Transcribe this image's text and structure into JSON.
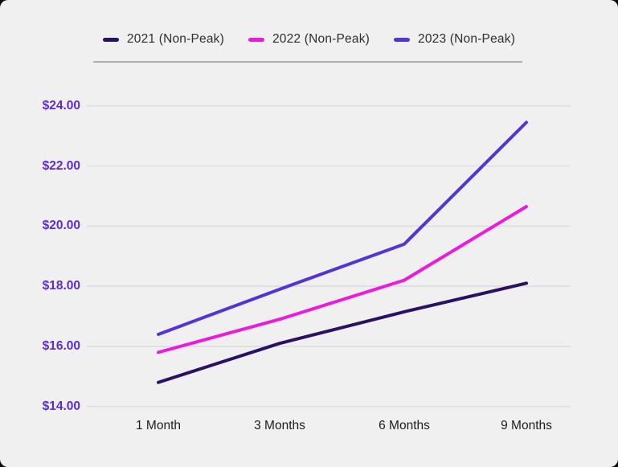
{
  "colors": {
    "background": "#f0f0f1",
    "gridline": "#dedee2",
    "divider": "#ababad",
    "y_tick_text": "#5b2bd5",
    "x_tick_text": "#1d1d1f",
    "legend_text": "#2e2e30",
    "series_2021": "#2b1166",
    "series_2022": "#ea1bdc",
    "series_2023": "#5534d4"
  },
  "legend": {
    "items": [
      {
        "label": "2021 (Non-Peak)",
        "color": "#2b1166"
      },
      {
        "label": "2022 (Non-Peak)",
        "color": "#ea1bdc"
      },
      {
        "label": "2023 (Non-Peak)",
        "color": "#5534d4"
      }
    ]
  },
  "chart_data": {
    "type": "line",
    "categories": [
      "1 Month",
      "3 Months",
      "6 Months",
      "9 Months"
    ],
    "series": [
      {
        "name": "2021 (Non-Peak)",
        "color": "#2b1166",
        "values": [
          14.8,
          16.1,
          17.15,
          18.1
        ]
      },
      {
        "name": "2022 (Non-Peak)",
        "color": "#ea1bdc",
        "values": [
          15.8,
          16.9,
          18.2,
          20.65
        ]
      },
      {
        "name": "2023 (Non-Peak)",
        "color": "#5534d4",
        "values": [
          16.4,
          17.9,
          19.4,
          23.45
        ]
      }
    ],
    "y_ticks": [
      {
        "value": 24,
        "label": "$24.00"
      },
      {
        "value": 22,
        "label": "$22.00"
      },
      {
        "value": 20,
        "label": "$20.00"
      },
      {
        "value": 18,
        "label": "$18.00"
      },
      {
        "value": 16,
        "label": "$16.00"
      },
      {
        "value": 14,
        "label": "$14.00"
      }
    ],
    "ylim": [
      14,
      24
    ],
    "xlabel": "",
    "ylabel": "",
    "title": "",
    "grid": "horizontal",
    "legend_position": "top"
  }
}
